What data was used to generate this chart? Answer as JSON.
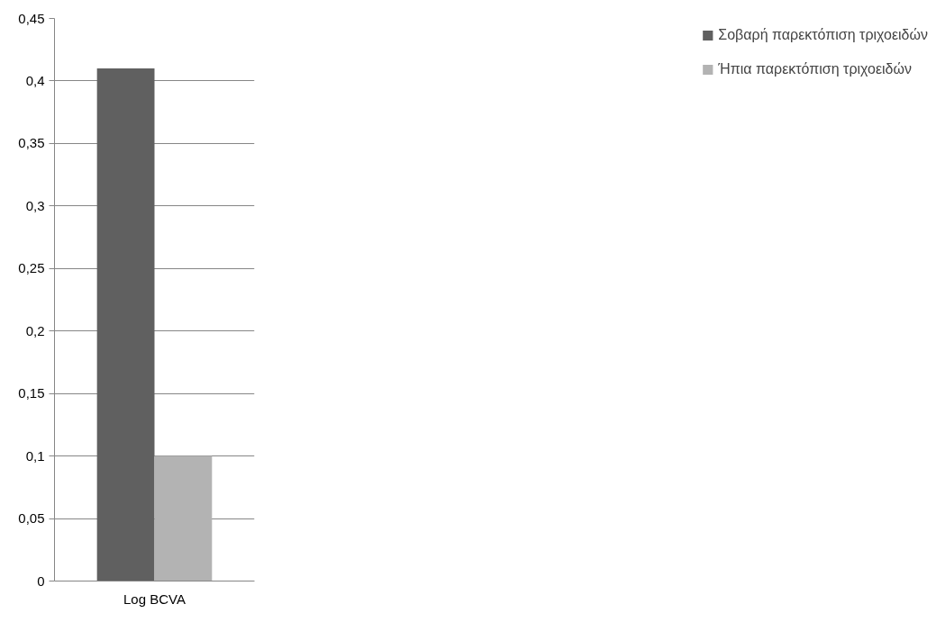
{
  "chart_data": {
    "type": "bar",
    "categories": [
      "Log BCVA"
    ],
    "series": [
      {
        "name": "Σοβαρή παρεκτόπιση τριχοειδών",
        "color": "#606060",
        "values": [
          0.41
        ]
      },
      {
        "name": "Ήπια παρεκτόπιση τριχοειδών",
        "color": "#b3b3b3",
        "values": [
          0.1
        ]
      }
    ],
    "ylim": [
      0,
      0.45
    ],
    "yticks": [
      0,
      {
        "value": 0.05,
        "label": "0,05"
      },
      {
        "value": 0.1,
        "label": "0,1"
      },
      {
        "value": 0.15,
        "label": "0,15"
      },
      {
        "value": 0.2,
        "label": "0,2"
      },
      {
        "value": 0.25,
        "label": "0,25"
      },
      {
        "value": 0.3,
        "label": "0,3"
      },
      {
        "value": 0.35,
        "label": "0,35"
      },
      {
        "value": 0.4,
        "label": "0,4"
      },
      {
        "value": 0.45,
        "label": "0,45"
      }
    ],
    "grid": "y",
    "legend": "right"
  }
}
